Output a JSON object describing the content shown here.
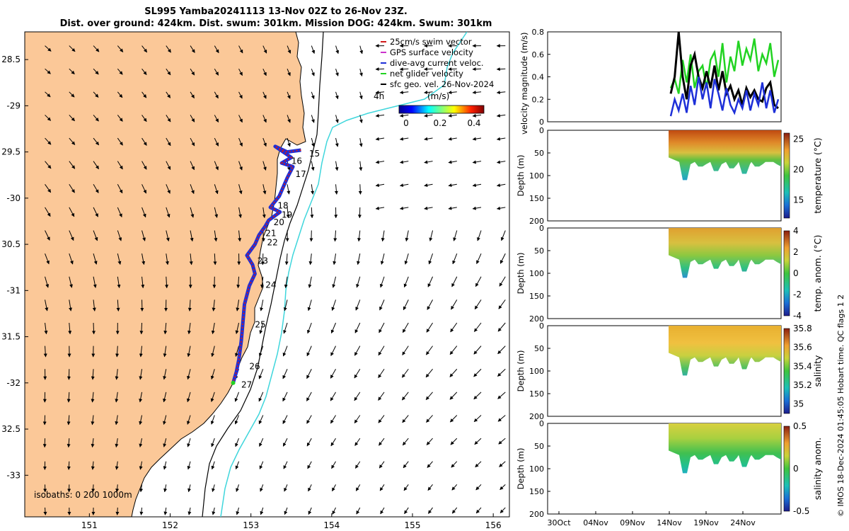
{
  "title": {
    "line1": "SL995 Yamba20241113 13-Nov 02Z to 26-Nov 23Z.",
    "line2": "Dist. over ground: 424km. Dist. swum: 301km. Mission DOG: 424km. Swum: 301km"
  },
  "credit": "© IMOS 18-Dec-2024 01:45:05 Hobart time. QC flags 1  2",
  "colors": {
    "land": "#fbc898",
    "track_red": "#d21a1a",
    "track_blue": "#1d2fd8",
    "isobath_cyan": "#3fd6dc",
    "net_green": "#22d322"
  },
  "chart_data": [
    {
      "type": "scatter",
      "name": "map",
      "xlim": [
        150.2,
        156.2
      ],
      "ylim": [
        -33.45,
        -28.2
      ],
      "x_ticks": [
        151,
        152,
        153,
        154,
        155,
        156
      ],
      "y_ticks": [
        -28.5,
        -29,
        -29.5,
        -30,
        -30.5,
        -31,
        -31.5,
        -32,
        -32.5,
        -33
      ],
      "y_tick_labels": [
        "28.5",
        "-29",
        "29.5",
        "-30",
        "30.5",
        "-31",
        "31.5",
        "-32",
        "32.5",
        "-33"
      ],
      "isobath_label": "isobaths: 0   200  1000m",
      "track": [
        [
          153.62,
          -29.48
        ],
        [
          153.45,
          -29.5
        ],
        [
          153.3,
          -29.44
        ],
        [
          153.5,
          -29.56
        ],
        [
          153.38,
          -29.62
        ],
        [
          153.52,
          -29.66
        ],
        [
          153.45,
          -29.78
        ],
        [
          153.35,
          -29.98
        ],
        [
          153.24,
          -30.1
        ],
        [
          153.36,
          -30.15
        ],
        [
          153.22,
          -30.24
        ],
        [
          153.18,
          -30.3
        ],
        [
          153.1,
          -30.4
        ],
        [
          153.05,
          -30.5
        ],
        [
          152.95,
          -30.62
        ],
        [
          153.02,
          -30.72
        ],
        [
          153.05,
          -30.82
        ],
        [
          152.98,
          -30.95
        ],
        [
          152.92,
          -31.15
        ],
        [
          152.9,
          -31.35
        ],
        [
          152.88,
          -31.55
        ],
        [
          152.85,
          -31.75
        ],
        [
          152.82,
          -31.88
        ],
        [
          152.78,
          -32.0
        ]
      ],
      "day_labels": [
        {
          "label": "15",
          "lon": 153.72,
          "lat": -29.52
        },
        {
          "label": "16",
          "lon": 153.5,
          "lat": -29.6
        },
        {
          "label": "17",
          "lon": 153.55,
          "lat": -29.74
        },
        {
          "label": "18",
          "lon": 153.33,
          "lat": -30.08
        },
        {
          "label": "19",
          "lon": 153.38,
          "lat": -30.18
        },
        {
          "label": "20",
          "lon": 153.28,
          "lat": -30.26
        },
        {
          "label": "21",
          "lon": 153.18,
          "lat": -30.38
        },
        {
          "label": "22",
          "lon": 153.2,
          "lat": -30.48
        },
        {
          "label": "23",
          "lon": 153.08,
          "lat": -30.68
        },
        {
          "label": "24",
          "lon": 153.18,
          "lat": -30.94
        },
        {
          "label": "25",
          "lon": 153.05,
          "lat": -31.37
        },
        {
          "label": "26",
          "lon": 152.98,
          "lat": -31.82
        },
        {
          "label": "27",
          "lon": 152.88,
          "lat": -32.02
        }
      ],
      "legend": [
        {
          "label": "25cm/s swim vector",
          "color": "#d21a1a"
        },
        {
          "label": "GPS surface velocity",
          "color": "#cc33cc"
        },
        {
          "label": "dive-avg current veloc.",
          "color": "#1d2fd8"
        },
        {
          "label": "net glider velocity",
          "color": "#22d322"
        },
        {
          "label": "sfc geo. vel. 26-Nov-2024",
          "color": "#000000"
        }
      ],
      "colorbar": {
        "label": "(m/s)",
        "ticks": [
          "0",
          "0.2",
          "0.4"
        ],
        "range": [
          0,
          0.5
        ],
        "extra_label": "4h"
      }
    },
    {
      "type": "line",
      "name": "velocity",
      "ylabel": "velocity magnitude (m/s)",
      "ylim": [
        0,
        0.8
      ],
      "y_ticks": [
        "0",
        "0.2",
        "0.4",
        "0.6",
        "0.8"
      ],
      "xlim": [
        0,
        30
      ],
      "series": [
        {
          "name": "net glider velocity",
          "color": "#22d322",
          "values": [
            0.3,
            0.38,
            0.25,
            0.55,
            0.35,
            0.6,
            0.3,
            0.45,
            0.5,
            0.3,
            0.55,
            0.62,
            0.4,
            0.7,
            0.35,
            0.58,
            0.45,
            0.72,
            0.5,
            0.65,
            0.55,
            0.74,
            0.45,
            0.6,
            0.52,
            0.7,
            0.4,
            0.55
          ]
        },
        {
          "name": "current",
          "color": "#000000",
          "values": [
            0.25,
            0.4,
            0.8,
            0.4,
            0.2,
            0.5,
            0.6,
            0.4,
            0.3,
            0.45,
            0.3,
            0.5,
            0.28,
            0.45,
            0.25,
            0.32,
            0.2,
            0.28,
            0.15,
            0.3,
            0.22,
            0.28,
            0.2,
            0.18,
            0.3,
            0.35,
            0.15,
            0.12
          ]
        },
        {
          "name": "dive-avg current veloc.",
          "color": "#1d2fd8",
          "values": [
            0.05,
            0.2,
            0.1,
            0.25,
            0.08,
            0.32,
            0.15,
            0.4,
            0.2,
            0.35,
            0.12,
            0.38,
            0.25,
            0.1,
            0.3,
            0.15,
            0.08,
            0.2,
            0.12,
            0.28,
            0.1,
            0.25,
            0.15,
            0.35,
            0.12,
            0.28,
            0.08,
            0.2
          ]
        }
      ]
    },
    {
      "type": "heatmap",
      "name": "temperature",
      "ylabel": "Depth (m)",
      "ylim": [
        0,
        200
      ],
      "y_ticks": [
        "0",
        "50",
        "100",
        "150",
        "200"
      ],
      "colorbar_label": "temperature (°C)",
      "colorbar_ticks": [
        "25",
        "20",
        "15"
      ],
      "colorbar_range": [
        12,
        26
      ],
      "colorbar_tick_values": [
        25,
        20,
        15
      ]
    },
    {
      "type": "heatmap",
      "name": "temp-anom",
      "ylabel": "Depth (m)",
      "ylim": [
        0,
        200
      ],
      "y_ticks": [
        "0",
        "50",
        "100",
        "150",
        "200"
      ],
      "colorbar_label": "temp. anom. (°C)",
      "colorbar_ticks": [
        "4",
        "2",
        "0",
        "-2",
        "-4"
      ],
      "colorbar_range": [
        -4,
        4
      ],
      "colorbar_tick_values": [
        4,
        2,
        0,
        -2,
        -4
      ]
    },
    {
      "type": "heatmap",
      "name": "salinity",
      "ylabel": "Depth (m)",
      "ylim": [
        0,
        200
      ],
      "y_ticks": [
        "0",
        "50",
        "100",
        "150",
        "200"
      ],
      "colorbar_label": "salinity",
      "colorbar_ticks": [
        "35.8",
        "35.6",
        "35.4",
        "35.2",
        "35"
      ],
      "colorbar_range": [
        34.9,
        35.8
      ],
      "colorbar_tick_values": [
        35.8,
        35.6,
        35.4,
        35.2,
        35
      ]
    },
    {
      "type": "heatmap",
      "name": "sal-anom",
      "ylabel": "Depth (m)",
      "ylim": [
        0,
        200
      ],
      "y_ticks": [
        "0",
        "50",
        "100",
        "150",
        "200"
      ],
      "colorbar_label": "salinity anom.",
      "colorbar_ticks": [
        "0.5",
        "0",
        "-0.5"
      ],
      "colorbar_range": [
        -0.5,
        0.5
      ],
      "colorbar_tick_values": [
        0.5,
        0,
        -0.5
      ],
      "x_ticks": [
        "30Oct",
        "04Nov",
        "09Nov",
        "14Nov",
        "19Nov",
        "24Nov"
      ]
    }
  ]
}
